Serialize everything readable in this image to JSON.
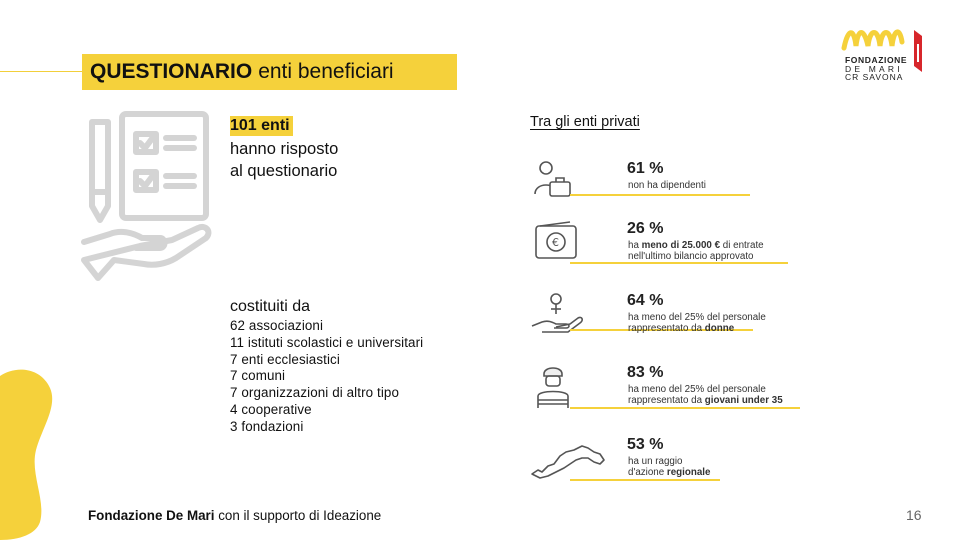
{
  "title": {
    "bold": "QUESTIONARIO",
    "rest": "enti beneficiari"
  },
  "logo": {
    "line1": "FONDAZIONE",
    "line2": "DE MARI",
    "line3": "CR SAVONA",
    "colors": {
      "wave": "#f5d13b",
      "flag_red": "#d7262b"
    }
  },
  "summary": {
    "count": "101 enti",
    "line1": "hanno risposto",
    "line2": "al questionario"
  },
  "composition": {
    "heading": "costituiti da",
    "items": [
      "62 associazioni",
      "11 istituti scolastici e universitari",
      "7 enti ecclesiastici",
      "7 comuni",
      "7 organizzazioni di altro tipo",
      "4 cooperative",
      "3 fondazioni"
    ]
  },
  "private": {
    "title": "Tra gli enti privati",
    "stats": [
      {
        "icon": "worker-briefcase-icon",
        "pct": "61 %",
        "desc_line1_pre": "non ha dipendenti",
        "desc_line1_bold": "",
        "desc_line1_post": "",
        "desc_line2_pre": "",
        "desc_line2_bold": ""
      },
      {
        "icon": "wallet-euro-icon",
        "pct": "26 %",
        "desc_line1_pre": "ha ",
        "desc_line1_bold": "meno di 25.000 €",
        "desc_line1_post": " di entrate",
        "desc_line2_pre": "nell'ultimo bilancio approvato",
        "desc_line2_bold": ""
      },
      {
        "icon": "female-hand-icon",
        "pct": "64 %",
        "desc_line1_pre": "ha meno del 25% del personale",
        "desc_line1_bold": "",
        "desc_line1_post": "",
        "desc_line2_pre": "rappresentato da ",
        "desc_line2_bold": "donne"
      },
      {
        "icon": "young-person-icon",
        "pct": "83 %",
        "desc_line1_pre": "ha meno del 25% del personale",
        "desc_line1_bold": "",
        "desc_line1_post": "",
        "desc_line2_pre": "rappresentato da ",
        "desc_line2_bold": "giovani under 35"
      },
      {
        "icon": "liguria-map-icon",
        "pct": "53 %",
        "desc_line1_pre": "ha un raggio",
        "desc_line1_bold": "",
        "desc_line1_post": "",
        "desc_line2_pre": "d'azione ",
        "desc_line2_bold": "regionale"
      }
    ]
  },
  "footer": {
    "bold": "Fondazione De Mari",
    "rest": " con il supporto di Ideazione"
  },
  "page_number": "16",
  "colors": {
    "accent": "#f5d13b",
    "icon_gray": "#cfcfcf"
  }
}
